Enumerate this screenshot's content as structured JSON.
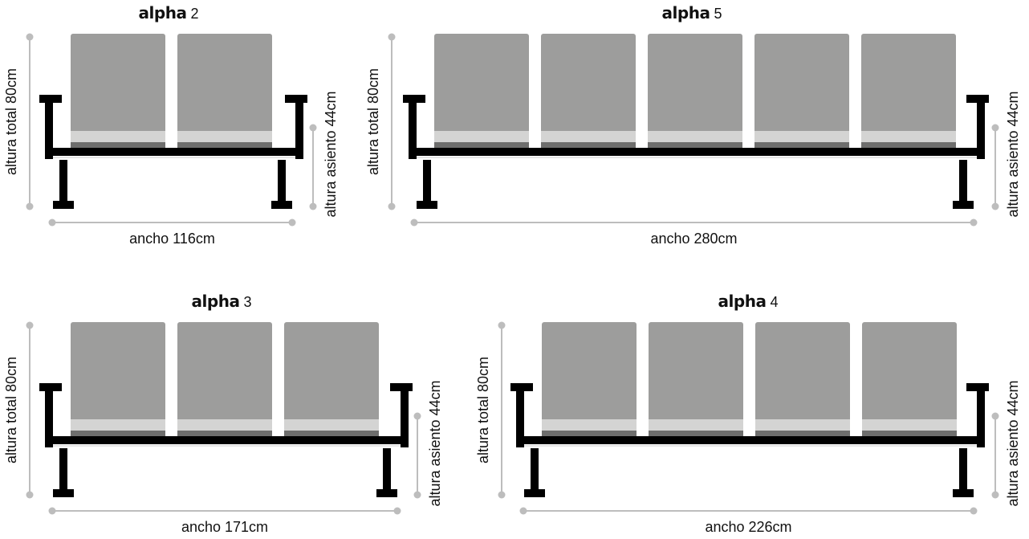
{
  "colors": {
    "frame": "#000000",
    "seat_back": "#9d9d9c",
    "seat_stripe": "#d4d4d3",
    "seat_cushion": "#6e6e6d",
    "dimension_line": "#bdbdbd",
    "text": "#111111"
  },
  "diagrams": [
    {
      "brand": "alpha",
      "model": "2",
      "seats": 2,
      "total_height_label": "altura total 80cm",
      "seat_height_label": "altura asiento 44cm",
      "width_label": "ancho 116cm"
    },
    {
      "brand": "alpha",
      "model": "5",
      "seats": 5,
      "total_height_label": "altura total 80cm",
      "seat_height_label": "altura asiento 44cm",
      "width_label": "ancho 280cm"
    },
    {
      "brand": "alpha",
      "model": "3",
      "seats": 3,
      "total_height_label": "altura total 80cm",
      "seat_height_label": "altura asiento 44cm",
      "width_label": "ancho 171cm"
    },
    {
      "brand": "alpha",
      "model": "4",
      "seats": 4,
      "total_height_label": "altura total 80cm",
      "seat_height_label": "altura asiento 44cm",
      "width_label": "ancho 226cm"
    }
  ]
}
